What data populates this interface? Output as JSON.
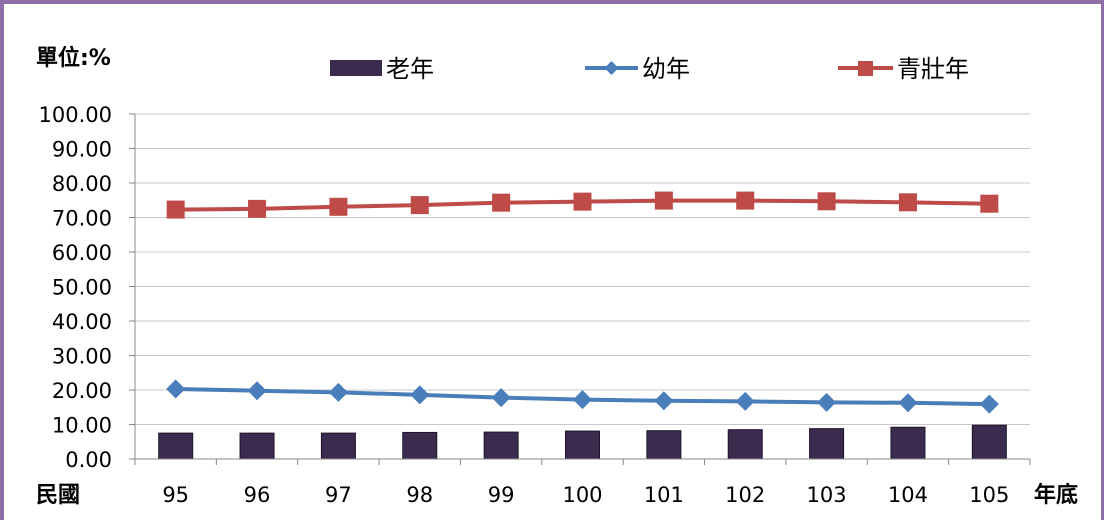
{
  "chart_data": {
    "type": "bar+line",
    "unit_label": "單位:%",
    "x_prefix_label": "民國",
    "x_suffix_label": "年底",
    "categories": [
      "95",
      "96",
      "97",
      "98",
      "99",
      "100",
      "101",
      "102",
      "103",
      "104",
      "105"
    ],
    "yticks": [
      "0.00",
      "10.00",
      "20.00",
      "30.00",
      "40.00",
      "50.00",
      "60.00",
      "70.00",
      "80.00",
      "90.00",
      "100.00"
    ],
    "ylim": [
      0,
      100
    ],
    "grid": true,
    "legend_position": "top",
    "series": [
      {
        "name": "老年",
        "type": "bar",
        "color": "#3b2c4f",
        "values": [
          7.5,
          7.5,
          7.5,
          7.7,
          7.8,
          8.1,
          8.2,
          8.5,
          8.8,
          9.2,
          9.8
        ]
      },
      {
        "name": "幼年",
        "type": "line",
        "marker": "diamond",
        "color": "#4a7ebb",
        "values": [
          20.3,
          19.8,
          19.3,
          18.6,
          17.8,
          17.2,
          16.9,
          16.7,
          16.4,
          16.3,
          15.9
        ]
      },
      {
        "name": "青壯年",
        "type": "line",
        "marker": "square",
        "color": "#be4b48",
        "values": [
          72.3,
          72.5,
          73.1,
          73.6,
          74.3,
          74.6,
          74.9,
          74.9,
          74.7,
          74.4,
          74.0
        ]
      }
    ]
  }
}
